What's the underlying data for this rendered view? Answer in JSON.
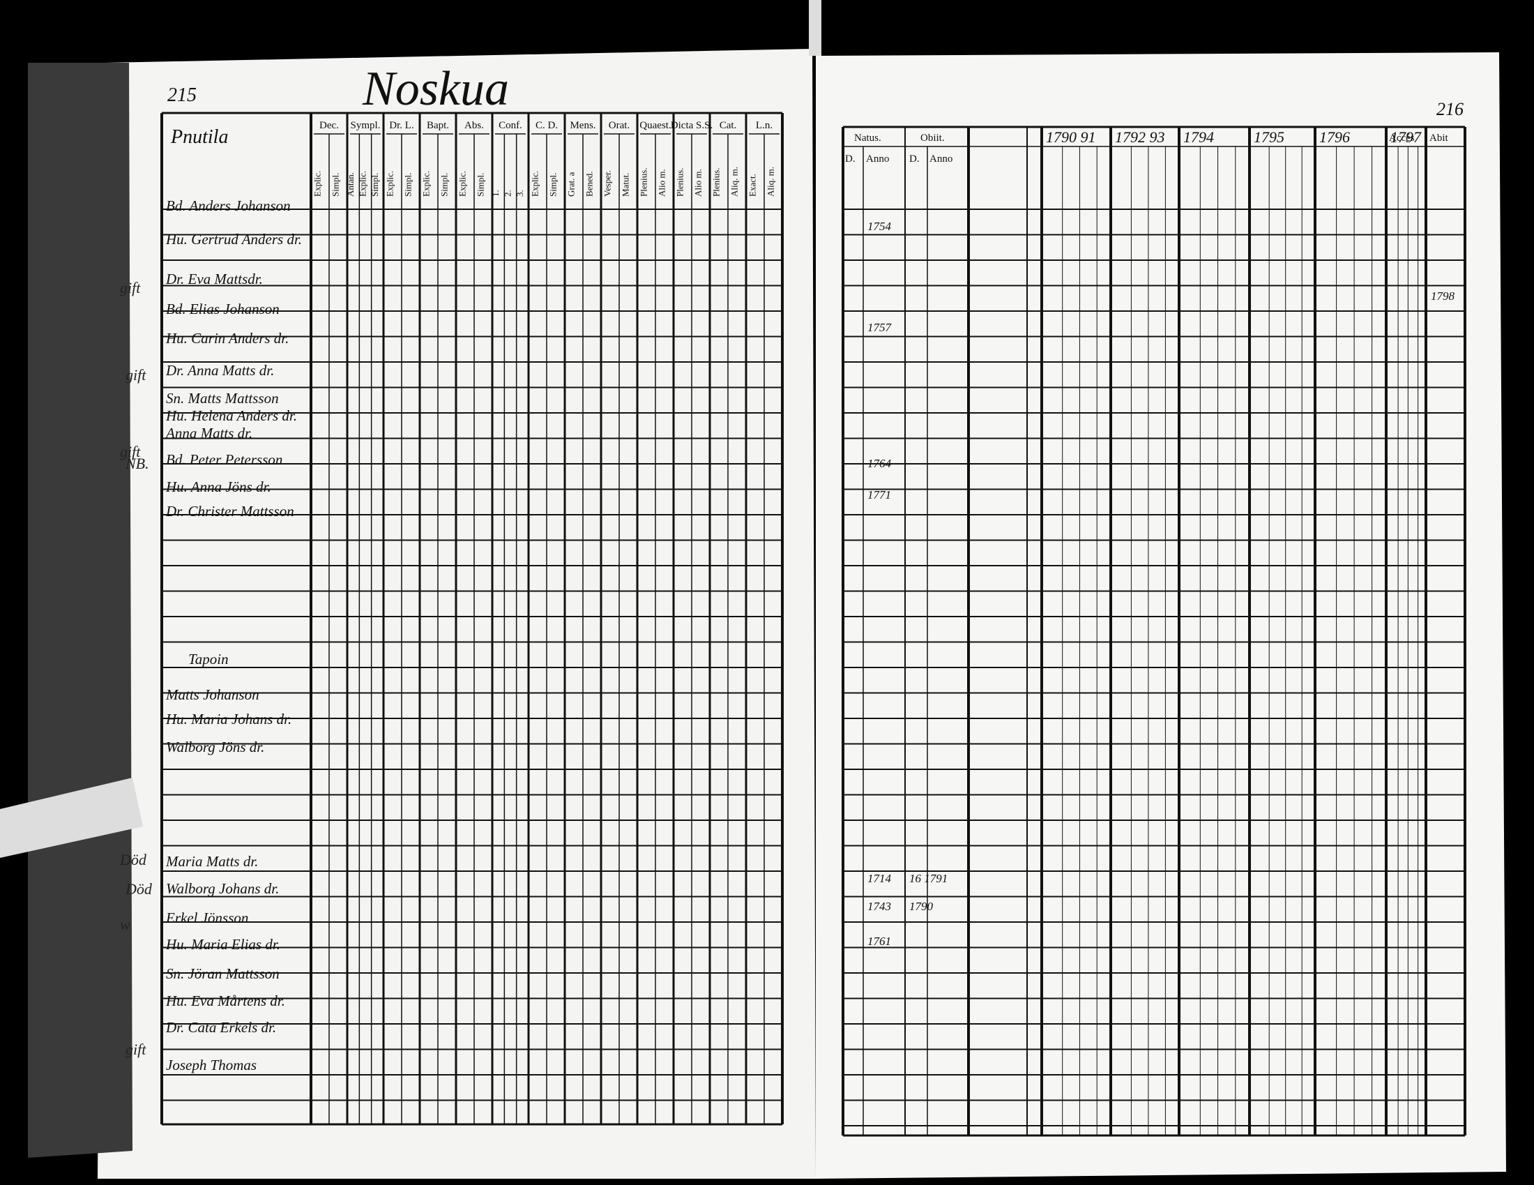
{
  "header": {
    "page_left": "215",
    "title": "Noskua",
    "page_right": "216"
  },
  "left": {
    "farm": "Pnutila",
    "columns": [
      {
        "group": "Dec.",
        "sub": [
          "Explic.",
          "Simpl."
        ]
      },
      {
        "group": "Sympl.",
        "sub": [
          "Antan.",
          "Explic.",
          "Simpl."
        ]
      },
      {
        "group": "Dr. L.",
        "sub": [
          "Explic.",
          "Simpl."
        ]
      },
      {
        "group": "Bapt.",
        "sub": [
          "Explic.",
          "Simpl."
        ]
      },
      {
        "group": "Abs.",
        "sub": [
          "Explic.",
          "Simpl."
        ]
      },
      {
        "group": "Conf.",
        "sub": [
          "1.",
          "2.",
          "3."
        ]
      },
      {
        "group": "C. D.",
        "sub": [
          "Explic.",
          "Simpl."
        ]
      },
      {
        "group": "Mens.",
        "sub": [
          "Grat. a",
          "Bened."
        ]
      },
      {
        "group": "Orat.",
        "sub": [
          "Vesper.",
          "Matut."
        ]
      },
      {
        "group": "Quaest.",
        "sub": [
          "Plenius.",
          "Alio m."
        ]
      },
      {
        "group": "Dicta S.S.",
        "sub": [
          "Plenius.",
          "Alio m."
        ]
      },
      {
        "group": "Cat.",
        "sub": [
          "Plenius.",
          "Aliq. m."
        ]
      },
      {
        "group": "L.n.",
        "sub": [
          "Exact.",
          "Aliq. m."
        ]
      }
    ],
    "names": [
      "Bd. Anders Johanson",
      "Hu. Gertrud Anders dr.",
      "Dr. Eva Mattsdr.",
      "Bd. Elias Johanson",
      "Hu. Carin Anders dr.",
      "Dr. Anna Matts dr.",
      "Sn. Matts Mattsson",
      "Hu. Helena Anders dr.",
      "Anna Matts dr.",
      "Bd. Peter Petersson",
      "Hu. Anna Jöns dr.",
      "Dr. Christer Mattsson",
      "Tapoin",
      "Matts Johanson",
      "Hu. Maria Johans dr.",
      "Walborg Jöns dr.",
      "Maria Matts dr.",
      "Walborg Johans dr.",
      "Erkel Jönsson",
      "Hu. Maria Elias dr.",
      "Sn. Jöran Mattsson",
      "Hu. Eva Mårtens dr.",
      "Dr. Cata Erkels dr.",
      "Joseph Thomas"
    ],
    "margin_notes": [
      "gift",
      "gift",
      "gift",
      "NB.",
      "Död",
      "Död",
      "w",
      "gift"
    ]
  },
  "right": {
    "natus": "Natus.",
    "obiit": "Obiit.",
    "day": "D.",
    "anno": "Anno",
    "years": [
      "1790 91",
      "1792 93",
      "1794",
      "1795",
      "1796",
      "1797"
    ],
    "acces": "Accés",
    "abit": "Abit",
    "births": [
      "1754",
      "1757",
      "1764",
      "1771",
      "1714",
      "1743",
      "1761"
    ],
    "deaths": [
      "16 1791",
      "1790"
    ],
    "abit_note": "1798"
  }
}
